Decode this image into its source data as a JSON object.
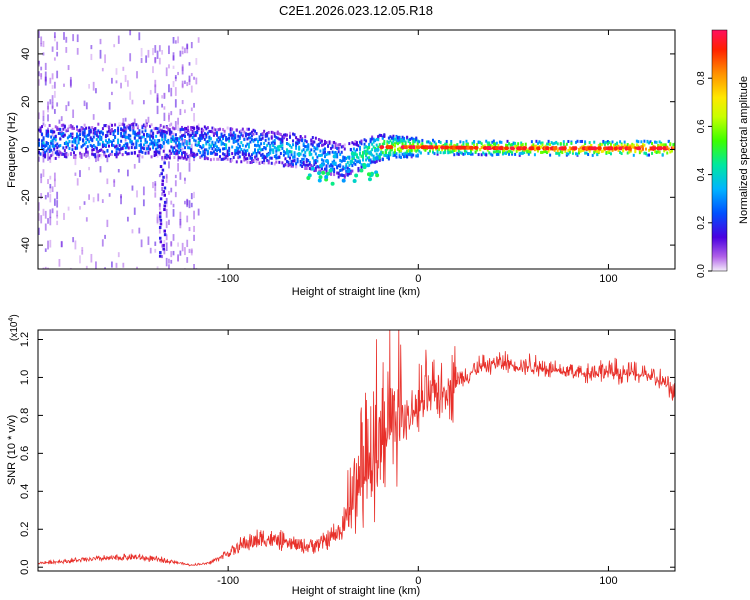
{
  "title": "C2E1.2026.023.12.05.R18",
  "colors": {
    "snr_line": "#e8302a",
    "frame": "#000000",
    "background": "#ffffff"
  },
  "chart_data": [
    {
      "type": "heatmap",
      "name": "spectrogram",
      "xlabel": "Height of straight line (km)",
      "ylabel": "Frequency (Hz)",
      "xlim": [
        -200,
        135
      ],
      "ylim": [
        -50,
        50
      ],
      "xticks": [
        -100,
        0,
        100
      ],
      "yticks": [
        -40,
        -20,
        0,
        20,
        40
      ],
      "colorbar": {
        "label": "Normalized spectral amplitude",
        "range": [
          0,
          1
        ],
        "ticks": [
          0.0,
          0.2,
          0.4,
          0.6,
          0.8
        ]
      },
      "ridge": {
        "description": "dominant frequency band (center in Hz vs height in km)",
        "x": [
          -200,
          -150,
          -100,
          -80,
          -60,
          -50,
          -40,
          -30,
          -20,
          0,
          50,
          100,
          135
        ],
        "center": [
          3,
          4,
          2,
          1,
          -1,
          -3,
          -5,
          -2,
          1,
          1,
          0.5,
          0.5,
          0.5
        ],
        "amplitude": [
          0.3,
          0.3,
          0.35,
          0.35,
          0.4,
          0.35,
          0.35,
          0.5,
          0.65,
          0.75,
          0.85,
          0.95,
          0.95
        ]
      }
    },
    {
      "type": "line",
      "name": "snr",
      "xlabel": "Height of straight line (km)",
      "ylabel": "SNR (10 * v/v)",
      "multiplier_label": "(x10",
      "multiplier_exp": "4",
      "multiplier_close": ")",
      "xlim": [
        -200,
        135
      ],
      "ylim": [
        -0.02,
        1.25
      ],
      "xticks": [
        -100,
        0,
        100
      ],
      "yticks": [
        0.0,
        0.2,
        0.4,
        0.6,
        0.8,
        1.0,
        1.2
      ],
      "envelope": {
        "x": [
          -200,
          -170,
          -150,
          -130,
          -120,
          -110,
          -100,
          -90,
          -80,
          -70,
          -60,
          -50,
          -40,
          -35,
          -30,
          -25,
          -20,
          -10,
          0,
          10,
          20,
          30,
          40,
          60,
          80,
          100,
          120,
          130,
          135
        ],
        "y": [
          0.02,
          0.04,
          0.05,
          0.03,
          0.01,
          0.02,
          0.07,
          0.12,
          0.14,
          0.12,
          0.1,
          0.12,
          0.18,
          0.3,
          0.42,
          0.5,
          0.6,
          0.72,
          0.82,
          0.9,
          0.97,
          1.03,
          1.07,
          1.05,
          1.02,
          1.02,
          1.01,
          0.96,
          0.9
        ]
      }
    }
  ]
}
